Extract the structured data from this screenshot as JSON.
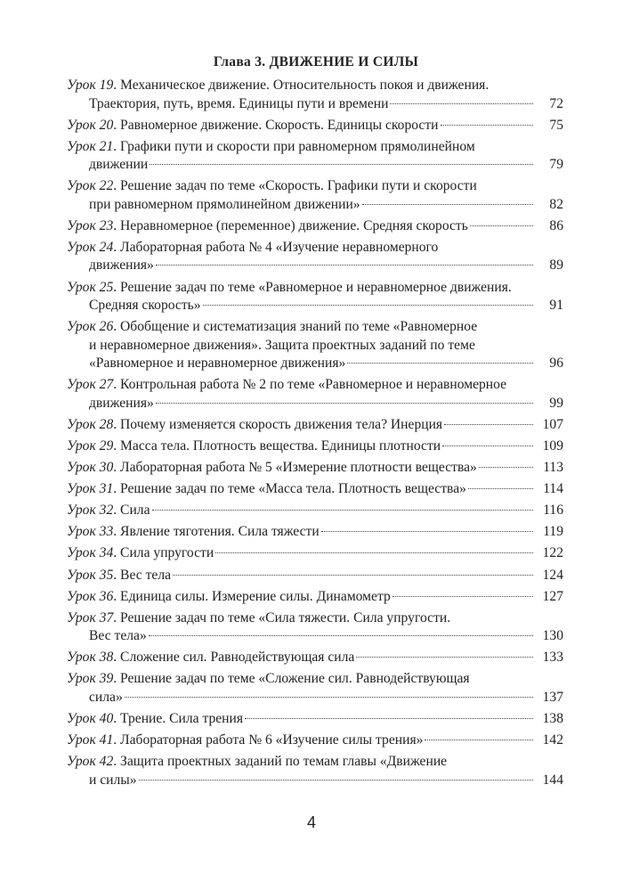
{
  "chapter_title": "Глава 3. ДВИЖЕНИЕ И СИЛЫ",
  "entries": [
    {
      "label": "Урок 19",
      "lines": [
        "Механическое движение. Относительность покоя и движения.",
        "Траектория, путь, время. Единицы пути и времени"
      ],
      "page": "72"
    },
    {
      "label": "Урок 20",
      "lines": [
        "Равномерное движение. Скорость. Единицы скорости"
      ],
      "page": "75"
    },
    {
      "label": "Урок 21",
      "lines": [
        "Графики пути и скорости при равномерном прямолинейном",
        "движении"
      ],
      "page": "79"
    },
    {
      "label": "Урок 22",
      "lines": [
        "Решение задач по теме «Скорость. Графики пути и скорости",
        "при равномерном прямолинейном движении»"
      ],
      "page": "82"
    },
    {
      "label": "Урок 23",
      "lines": [
        "Неравномерное (переменное) движение. Средняя скорость"
      ],
      "page": "86"
    },
    {
      "label": "Урок 24",
      "lines": [
        "Лабораторная работа № 4 «Изучение неравномерного",
        "движения»"
      ],
      "page": "89"
    },
    {
      "label": "Урок 25",
      "lines": [
        "Решение задач по теме «Равномерное и неравномерное движения.",
        "Средняя скорость»"
      ],
      "page": "91"
    },
    {
      "label": "Урок 26",
      "lines": [
        "Обобщение и систематизация знаний по теме «Равномерное",
        "и неравномерное движения». Защита проектных заданий по теме",
        "«Равномерное и неравномерное движения»"
      ],
      "page": "96"
    },
    {
      "label": "Урок 27",
      "lines": [
        "Контрольная работа № 2 по теме «Равномерное и неравномерное",
        "движения»"
      ],
      "page": "99"
    },
    {
      "label": "Урок 28",
      "lines": [
        "Почему изменяется скорость движения тела? Инерция"
      ],
      "page": "107"
    },
    {
      "label": "Урок 29",
      "lines": [
        "Масса тела. Плотность вещества. Единицы плотности"
      ],
      "page": "109"
    },
    {
      "label": "Урок 30",
      "lines": [
        "Лабораторная работа № 5 «Измерение плотности вещества»"
      ],
      "page": "113"
    },
    {
      "label": "Урок 31",
      "lines": [
        "Решение задач по теме «Масса тела. Плотность вещества»"
      ],
      "page": "114"
    },
    {
      "label": "Урок 32",
      "lines": [
        "Сила"
      ],
      "page": "116"
    },
    {
      "label": "Урок 33",
      "lines": [
        "Явление тяготения. Сила тяжести"
      ],
      "page": "119"
    },
    {
      "label": "Урок 34",
      "lines": [
        "Сила упругости"
      ],
      "page": "122"
    },
    {
      "label": "Урок 35",
      "lines": [
        "Вес тела"
      ],
      "page": "124"
    },
    {
      "label": "Урок 36",
      "lines": [
        "Единица силы. Измерение силы. Динамометр"
      ],
      "page": "127"
    },
    {
      "label": "Урок 37",
      "lines": [
        "Решение задач по теме «Сила тяжести. Сила упругости.",
        "Вес тела»"
      ],
      "page": "130"
    },
    {
      "label": "Урок 38",
      "lines": [
        "Сложение сил. Равнодействующая сила"
      ],
      "page": "133"
    },
    {
      "label": "Урок 39",
      "lines": [
        "Решение задач по теме «Сложение сил. Равнодействующая",
        "сила»"
      ],
      "page": "137"
    },
    {
      "label": "Урок 40",
      "lines": [
        "Трение. Сила трения"
      ],
      "page": "138"
    },
    {
      "label": "Урок 41",
      "lines": [
        "Лабораторная работа № 6 «Изучение силы трения»"
      ],
      "page": "142"
    },
    {
      "label": "Урок 42",
      "lines": [
        "Защита проектных заданий по темам главы «Движение",
        "и силы»"
      ],
      "page": "144"
    }
  ],
  "page_number": "4"
}
